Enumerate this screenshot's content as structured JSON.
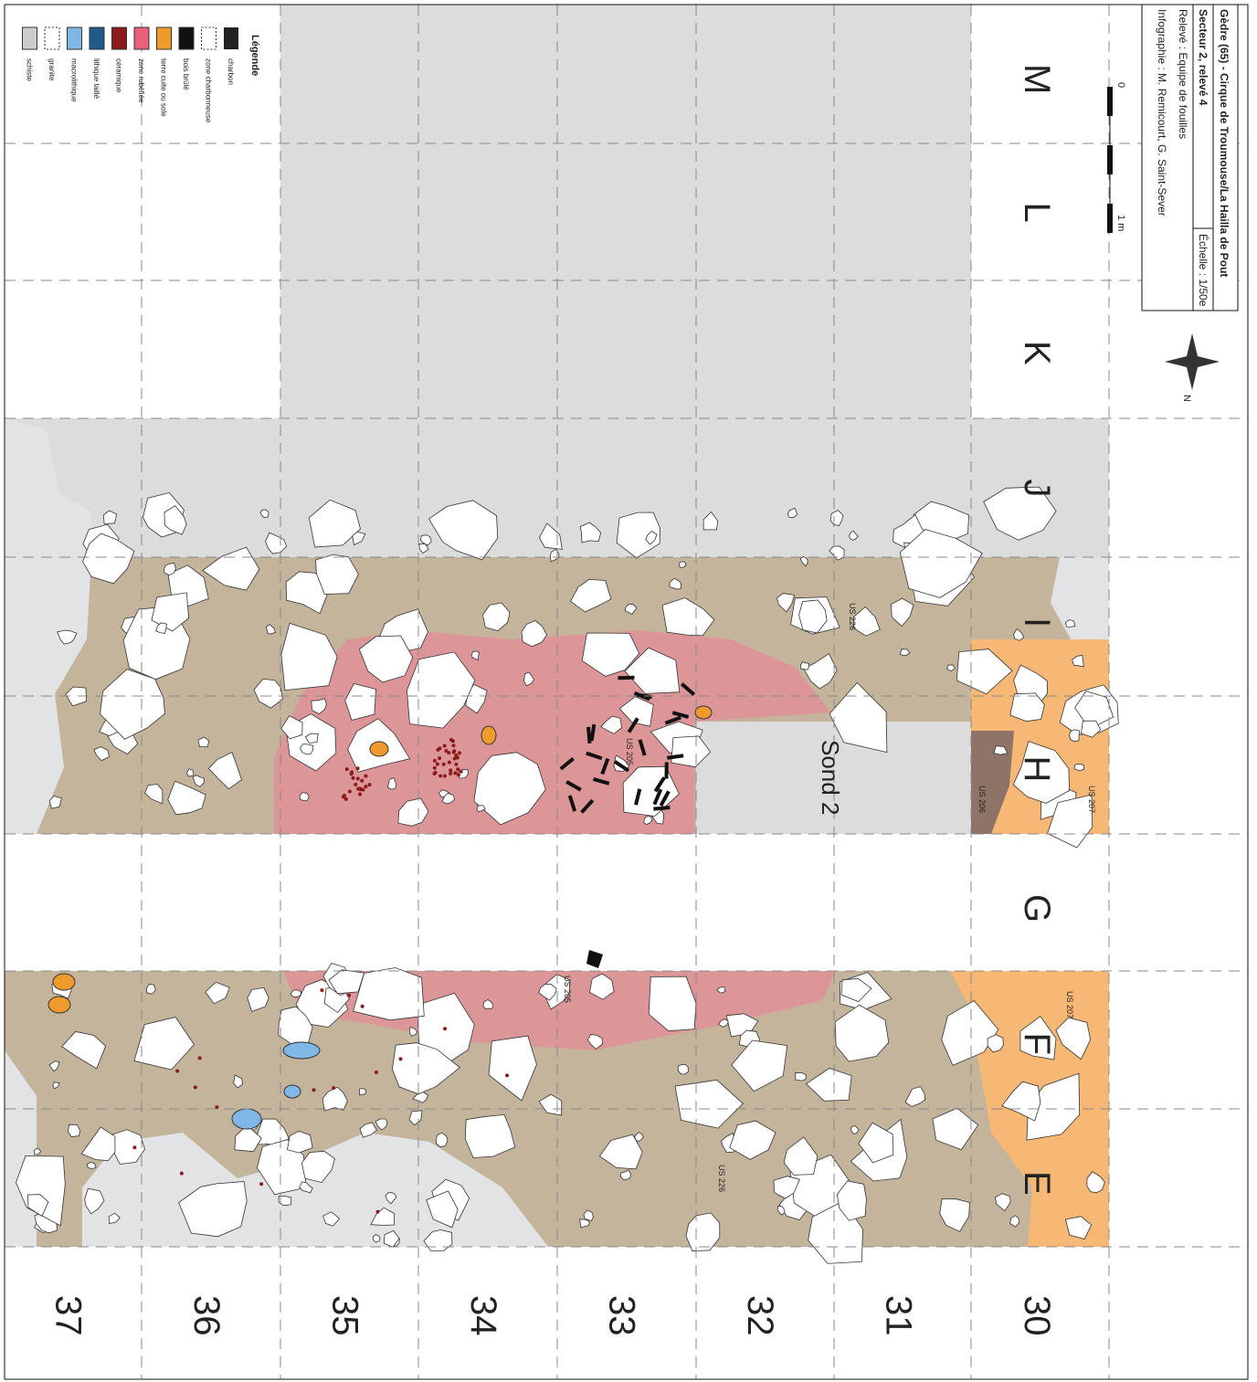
{
  "title_block": {
    "title": "Gèdre (65) - Cirque de Troumouse/La Hailla de Pout",
    "sector": "Secteur 2, relevé 4",
    "scale_ratio": "Échelle : 1/50e",
    "survey": "Relevé : Equipe de fouilles",
    "graphics": "Infographie : M. Remicourt, G. Saint-Sever"
  },
  "scale_bar": {
    "start": "0",
    "end": "1 m"
  },
  "north": "N",
  "legend": {
    "title": "Légende",
    "items": [
      "charbon",
      "zone charbonneuse",
      "bois brûlé",
      "terre cuite ou sole",
      "zone rubéfiée",
      "céramique",
      "lithique taillé",
      "macrolithique",
      "granite",
      "schiste"
    ]
  },
  "grid": {
    "letters": [
      "M",
      "L",
      "K",
      "J",
      "I",
      "H",
      "G",
      "F",
      "E"
    ],
    "numbers": [
      "30",
      "31",
      "32",
      "33",
      "34",
      "35",
      "36",
      "37"
    ]
  },
  "annotations": [
    "US 226",
    "US 205",
    "Sond 2",
    "US 206",
    "US 207",
    "US 205",
    "US 207",
    "US 226"
  ]
}
